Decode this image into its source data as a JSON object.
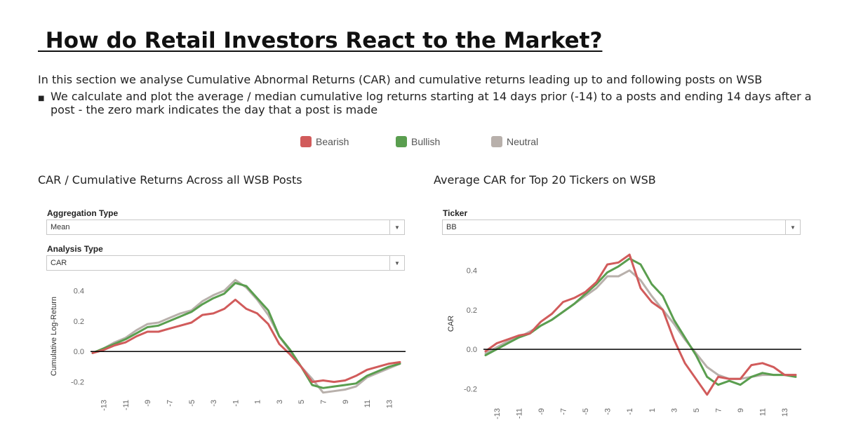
{
  "title": " How do Retail Investors React to the Market?",
  "intro": "In this section we analyse Cumulative Abnormal Returns (CAR) and cumulative returns leading up to and following posts on WSB",
  "bullet_mark": "■",
  "bullet": "We calculate and plot the average / median cumulative log returns starting at 14 days prior (-14) to a posts and ending 14 days after a post - the zero mark indicates the day that a post is made",
  "legend": [
    {
      "label": "Bearish",
      "color": "#d15b5b"
    },
    {
      "label": "Bullish",
      "color": "#5a9e4f"
    },
    {
      "label": "Neutral",
      "color": "#b8b0ab"
    }
  ],
  "left_panel": {
    "title": "CAR / Cumulative Returns Across all WSB Posts",
    "filters": [
      {
        "label": "Aggregation Type",
        "value": "Mean"
      },
      {
        "label": "Analysis Type",
        "value": "CAR"
      }
    ]
  },
  "right_panel": {
    "title": "Average CAR for Top 20 Tickers on WSB",
    "filters": [
      {
        "label": "Ticker",
        "value": "BB"
      }
    ]
  },
  "chart_data": [
    {
      "type": "line",
      "title": "",
      "xlabel": "",
      "ylabel": "Cumulative Log-Return",
      "x": [
        -14,
        -13,
        -12,
        -11,
        -10,
        -9,
        -8,
        -7,
        -6,
        -5,
        -4,
        -3,
        -2,
        -1,
        0,
        1,
        2,
        3,
        4,
        5,
        6,
        7,
        8,
        9,
        10,
        11,
        12,
        13,
        14
      ],
      "xticks": [
        -13,
        -11,
        -9,
        -7,
        -5,
        -3,
        -1,
        1,
        3,
        5,
        7,
        9,
        11,
        13
      ],
      "yticks": [
        -0.2,
        0.0,
        0.2,
        0.4
      ],
      "ylim": [
        -0.28,
        0.48
      ],
      "zero_line": true,
      "grid": false,
      "series": [
        {
          "name": "Neutral",
          "color": "#b8b0ab",
          "values": [
            -0.01,
            0.02,
            0.06,
            0.09,
            0.14,
            0.18,
            0.19,
            0.22,
            0.25,
            0.27,
            0.33,
            0.37,
            0.4,
            0.47,
            0.42,
            0.34,
            0.24,
            0.1,
            0.0,
            -0.1,
            -0.18,
            -0.27,
            -0.26,
            -0.25,
            -0.23,
            -0.17,
            -0.14,
            -0.11,
            -0.08
          ]
        },
        {
          "name": "Bullish",
          "color": "#5a9e4f",
          "values": [
            -0.01,
            0.02,
            0.05,
            0.08,
            0.12,
            0.16,
            0.17,
            0.2,
            0.23,
            0.26,
            0.31,
            0.35,
            0.38,
            0.45,
            0.43,
            0.35,
            0.27,
            0.1,
            0.01,
            -0.1,
            -0.22,
            -0.24,
            -0.23,
            -0.22,
            -0.21,
            -0.16,
            -0.13,
            -0.1,
            -0.08
          ]
        },
        {
          "name": "Bearish",
          "color": "#d15b5b",
          "values": [
            -0.01,
            0.01,
            0.04,
            0.06,
            0.1,
            0.13,
            0.13,
            0.15,
            0.17,
            0.19,
            0.24,
            0.25,
            0.28,
            0.34,
            0.28,
            0.25,
            0.18,
            0.05,
            -0.02,
            -0.1,
            -0.2,
            -0.19,
            -0.2,
            -0.19,
            -0.16,
            -0.12,
            -0.1,
            -0.08,
            -0.07
          ]
        }
      ]
    },
    {
      "type": "line",
      "title": "",
      "xlabel": "",
      "ylabel": "CAR",
      "x": [
        -14,
        -13,
        -12,
        -11,
        -10,
        -9,
        -8,
        -7,
        -6,
        -5,
        -4,
        -3,
        -2,
        -1,
        0,
        1,
        2,
        3,
        4,
        5,
        6,
        7,
        8,
        9,
        10,
        11,
        12,
        13,
        14
      ],
      "xticks": [
        -13,
        -11,
        -9,
        -7,
        -5,
        -3,
        -1,
        1,
        3,
        5,
        7,
        9,
        11,
        13
      ],
      "yticks": [
        -0.2,
        0.0,
        0.2,
        0.4
      ],
      "ylim": [
        -0.27,
        0.53
      ],
      "zero_line": true,
      "grid": false,
      "series": [
        {
          "name": "Neutral",
          "color": "#b8b0ab",
          "values": [
            -0.02,
            0.01,
            0.04,
            0.06,
            0.09,
            0.12,
            0.15,
            0.19,
            0.23,
            0.27,
            0.31,
            0.37,
            0.37,
            0.4,
            0.35,
            0.27,
            0.2,
            0.13,
            0.05,
            -0.02,
            -0.09,
            -0.13,
            -0.15,
            -0.15,
            -0.14,
            -0.13,
            -0.13,
            -0.13,
            -0.13
          ]
        },
        {
          "name": "Bullish",
          "color": "#5a9e4f",
          "values": [
            -0.03,
            0.0,
            0.03,
            0.06,
            0.08,
            0.12,
            0.15,
            0.19,
            0.23,
            0.28,
            0.33,
            0.39,
            0.42,
            0.46,
            0.43,
            0.33,
            0.27,
            0.15,
            0.06,
            -0.03,
            -0.14,
            -0.18,
            -0.16,
            -0.18,
            -0.14,
            -0.12,
            -0.13,
            -0.13,
            -0.14
          ]
        },
        {
          "name": "Bearish",
          "color": "#d15b5b",
          "values": [
            -0.01,
            0.03,
            0.05,
            0.07,
            0.08,
            0.14,
            0.18,
            0.24,
            0.26,
            0.29,
            0.34,
            0.43,
            0.44,
            0.48,
            0.31,
            0.24,
            0.2,
            0.05,
            -0.07,
            -0.15,
            -0.23,
            -0.14,
            -0.15,
            -0.15,
            -0.08,
            -0.07,
            -0.09,
            -0.13,
            -0.13
          ]
        }
      ]
    }
  ]
}
